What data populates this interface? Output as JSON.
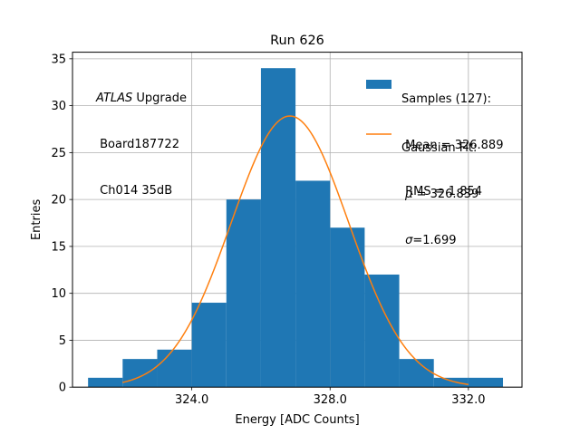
{
  "chart_data": {
    "type": "bar",
    "title": "Run 626",
    "xlabel": "Energy [ADC Counts]",
    "ylabel": "Entries",
    "xlim": [
      320.55,
      333.55
    ],
    "ylim": [
      0,
      35.7
    ],
    "grid": true,
    "xticks": [
      324.0,
      328.0,
      332.0
    ],
    "xtick_labels": [
      "324.0",
      "328.0",
      "332.0"
    ],
    "yticks": [
      0,
      5,
      10,
      15,
      20,
      25,
      30,
      35
    ],
    "ytick_labels": [
      "0",
      "5",
      "10",
      "15",
      "20",
      "25",
      "30",
      "35"
    ],
    "bin_edges": [
      321.0,
      322.0,
      323.0,
      324.0,
      325.0,
      326.0,
      327.0,
      328.0,
      329.0,
      330.0,
      331.0,
      332.0,
      333.0
    ],
    "values": [
      1,
      3,
      4,
      9,
      20,
      34,
      22,
      17,
      12,
      3,
      1,
      1
    ],
    "bar_color": "#1f77b4",
    "fit": {
      "mu": 326.839,
      "sigma": 1.699,
      "amplitude": 28.9,
      "range": [
        322.0,
        332.0
      ],
      "color": "#ff7f0e"
    },
    "legend": {
      "location": "top-right",
      "samples_header": "Samples (127):",
      "mean_label": " Mean = 326.889",
      "rms_label": " RMS = 1.854",
      "fit_header": "Gaussian Fit:",
      "mu_symbol": "μ",
      "mu_text": " = 326.839",
      "sigma_symbol": "σ",
      "sigma_text": "=1.699"
    },
    "annotation": {
      "experiment": "ATLAS",
      "experiment_suffix": " Upgrade",
      "board": " Board187722",
      "channel": " Ch014 35dB"
    }
  }
}
